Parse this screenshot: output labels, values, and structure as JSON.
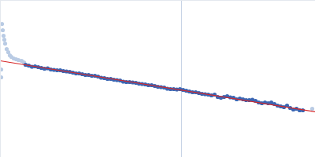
{
  "chart_data": {
    "type": "scatter",
    "xlim": [
      0,
      400
    ],
    "ylim": [
      200,
      0
    ],
    "tick_labels": false,
    "grid": false,
    "reference_x": 230,
    "series": [
      {
        "type": "scatter",
        "color": "#b9cbe4",
        "marker": "circle",
        "x": [
          1,
          1,
          2,
          3,
          4,
          5,
          6,
          8,
          10,
          12,
          14,
          17,
          20,
          23,
          27,
          30,
          396
        ],
        "values": [
          98,
          88,
          30,
          38,
          45,
          50,
          55,
          62,
          66,
          70,
          72,
          74,
          75,
          76,
          77,
          79,
          138
        ]
      },
      {
        "type": "scatter",
        "color": "#3b66b3",
        "marker": "circle",
        "x": [
          32,
          36,
          40,
          44,
          48,
          52,
          56,
          60,
          64,
          68,
          72,
          76,
          80,
          84,
          88,
          92,
          96,
          100,
          104,
          108,
          112,
          116,
          120,
          124,
          128,
          132,
          136,
          140,
          144,
          148,
          152,
          156,
          160,
          164,
          168,
          172,
          176,
          180,
          184,
          188,
          192,
          196,
          200,
          204,
          208,
          212,
          216,
          220,
          224,
          228,
          232,
          236,
          240,
          244,
          248,
          252,
          256,
          260,
          264,
          268,
          272,
          276,
          280,
          284,
          288,
          292,
          296,
          300,
          304,
          308,
          312,
          316,
          320,
          324,
          328,
          332,
          336,
          340,
          344,
          348,
          352,
          356,
          360,
          364,
          368,
          372,
          376,
          380,
          384
        ],
        "values": [
          82,
          83,
          84.5,
          84,
          85,
          86,
          87,
          86.5,
          88,
          88.5,
          89,
          89,
          90,
          90.5,
          91,
          92,
          93,
          93,
          94,
          95,
          95,
          96,
          96,
          97,
          98.5,
          99,
          100,
          100,
          101,
          101.5,
          102,
          103.5,
          104,
          104,
          104.5,
          105,
          106,
          106.5,
          107,
          108,
          108,
          109,
          110,
          110.5,
          111,
          112.5,
          113,
          113,
          113.5,
          113,
          114,
          115,
          116,
          117,
          117,
          118,
          119,
          119.5,
          120,
          121,
          120,
          123,
          124,
          123,
          122,
          123.5,
          124,
          126,
          125,
          126,
          127,
          127,
          126.5,
          128,
          130,
          131,
          130,
          131,
          130,
          132,
          134,
          135,
          136,
          134,
          137,
          139,
          138,
          140,
          140
        ]
      },
      {
        "type": "line",
        "color": "#d62728",
        "line_style": "solid",
        "x": [
          0,
          400
        ],
        "values": [
          77,
          142
        ]
      }
    ]
  }
}
